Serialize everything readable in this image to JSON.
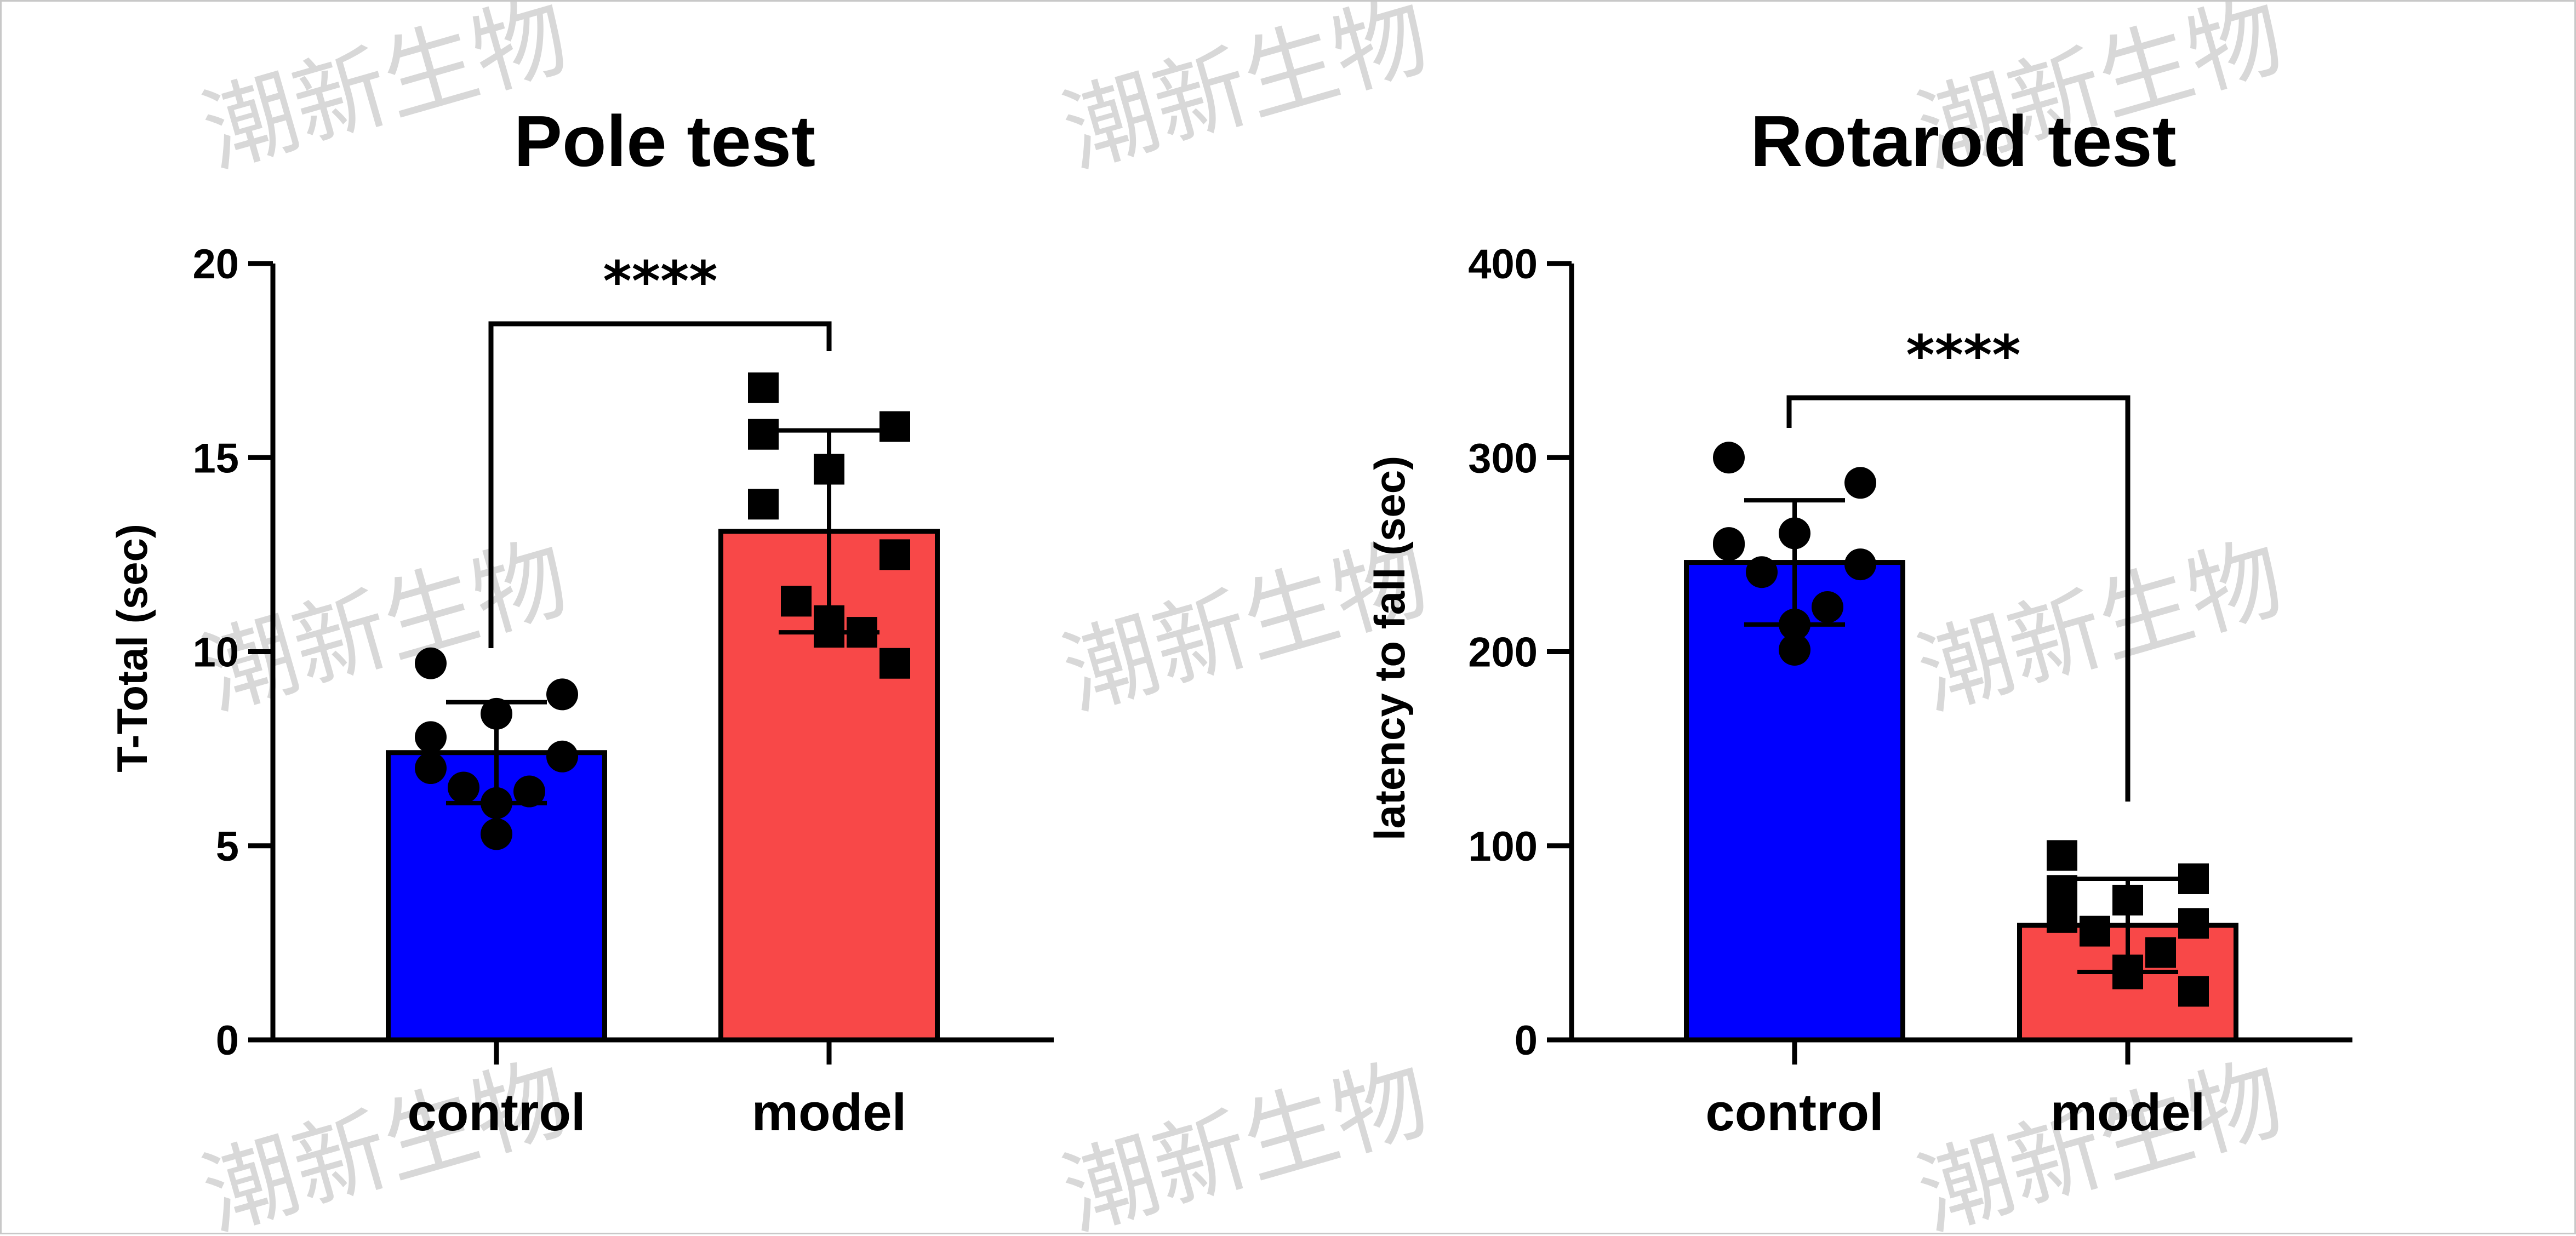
{
  "colors": {
    "control": "#0000FF",
    "model": "#F84848",
    "outline": "#000000",
    "watermark": "#D8D8D8"
  },
  "watermark": "潮新生物",
  "chart_data": [
    {
      "type": "bar",
      "title": "Pole test",
      "xlabel": "",
      "ylabel": "T-Total (sec)",
      "categories": [
        "control",
        "model"
      ],
      "values": [
        7.4,
        13.1
      ],
      "sd": [
        1.3,
        2.6
      ],
      "points": [
        [
          9.7,
          8.9,
          7.8,
          8.4,
          7.0,
          7.3,
          6.5,
          6.4,
          6.1,
          5.3
        ],
        [
          16.8,
          15.8,
          15.6,
          14.7,
          13.8,
          12.5,
          11.3,
          10.5,
          10.5,
          10.8,
          9.7
        ]
      ],
      "markers": [
        "circle",
        "square"
      ],
      "ylim": [
        0,
        20
      ],
      "yticks": [
        "0",
        "5",
        "10",
        "15",
        "20"
      ],
      "significance": {
        "label": "****",
        "between": [
          "control",
          "model"
        ]
      }
    },
    {
      "type": "bar",
      "title": "Rotarod test",
      "xlabel": "",
      "ylabel": "latency to fall (sec)",
      "categories": [
        "control",
        "model"
      ],
      "values": [
        246,
        59
      ],
      "sd": [
        32,
        24
      ],
      "points": [
        [
          300,
          287,
          256,
          261,
          255,
          245,
          241,
          223,
          214,
          201
        ],
        [
          95,
          83,
          77,
          72,
          63,
          60,
          56,
          45,
          36,
          34,
          25
        ]
      ],
      "markers": [
        "circle",
        "square"
      ],
      "ylim": [
        0,
        400
      ],
      "yticks": [
        "0",
        "100",
        "200",
        "300",
        "400"
      ],
      "significance": {
        "label": "****",
        "between": [
          "control",
          "model"
        ]
      }
    }
  ]
}
